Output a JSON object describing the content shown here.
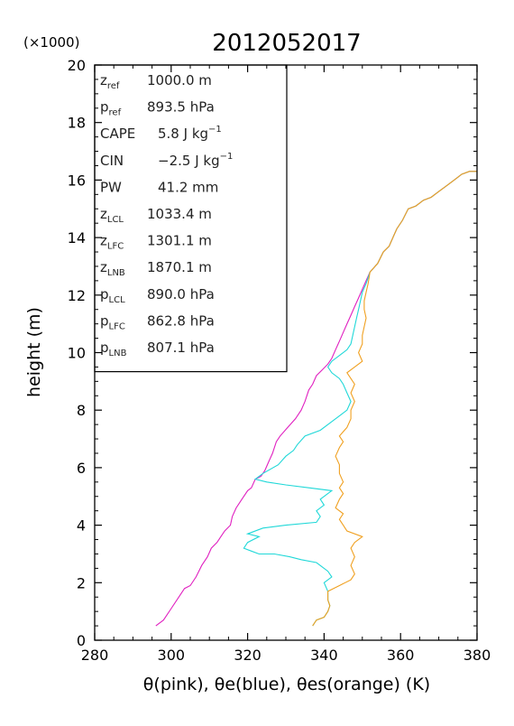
{
  "chart_data": {
    "type": "line",
    "title": "2012052017",
    "xlabel": "θ(pink), θe(blue), θes(orange)   (K)",
    "ylabel": "height (m)",
    "y_scale_note": "(×1000)",
    "xlim": [
      280,
      380
    ],
    "ylim": [
      0,
      20
    ],
    "x_ticks": [
      "280",
      "300",
      "320",
      "340",
      "360",
      "380"
    ],
    "y_ticks": [
      "0",
      "2",
      "4",
      "6",
      "8",
      "10",
      "12",
      "14",
      "16",
      "18",
      "20"
    ],
    "grid": false,
    "colors": {
      "theta": "#e020c0",
      "theta_e": "#20d8d8",
      "theta_es": "#f0a020",
      "upper_mix": "#7a9a40"
    },
    "stats": [
      {
        "base": "z",
        "sub": "ref",
        "value": "1000.0 m"
      },
      {
        "base": "p",
        "sub": "ref",
        "value": "893.5 hPa"
      },
      {
        "base": "CAPE",
        "sub": "",
        "value": "5.8 J kg",
        "sup": "−1"
      },
      {
        "base": "CIN",
        "sub": "",
        "value": "−2.5 J kg",
        "sup": "−1"
      },
      {
        "base": "PW",
        "sub": "",
        "value": "41.2 mm"
      },
      {
        "base": "z",
        "sub": "LCL",
        "value": "1033.4 m"
      },
      {
        "base": "z",
        "sub": "LFC",
        "value": "1301.1 m"
      },
      {
        "base": "z",
        "sub": "LNB",
        "value": "1870.1 m"
      },
      {
        "base": "p",
        "sub": "LCL",
        "value": "890.0 hPa"
      },
      {
        "base": "p",
        "sub": "LFC",
        "value": "862.8 hPa"
      },
      {
        "base": "p",
        "sub": "LNB",
        "value": "807.1 hPa"
      }
    ],
    "series": [
      {
        "name": "θ(pink)",
        "color": "#e020c0",
        "points": [
          [
            296,
            0.5
          ],
          [
            298,
            0.7
          ],
          [
            300,
            1.1
          ],
          [
            302,
            1.5
          ],
          [
            303.5,
            1.8
          ],
          [
            305,
            1.9
          ],
          [
            306.5,
            2.2
          ],
          [
            308,
            2.6
          ],
          [
            309.5,
            2.9
          ],
          [
            310.5,
            3.2
          ],
          [
            312,
            3.4
          ],
          [
            313,
            3.6
          ],
          [
            314,
            3.8
          ],
          [
            315.5,
            4.0
          ],
          [
            316,
            4.3
          ],
          [
            317,
            4.6
          ],
          [
            318.5,
            4.9
          ],
          [
            320,
            5.2
          ],
          [
            321,
            5.3
          ],
          [
            322,
            5.6
          ],
          [
            323.5,
            5.7
          ],
          [
            324.5,
            5.9
          ],
          [
            325.5,
            6.2
          ],
          [
            326.5,
            6.5
          ],
          [
            327.5,
            6.9
          ],
          [
            328.5,
            7.1
          ],
          [
            330.5,
            7.4
          ],
          [
            332.5,
            7.7
          ],
          [
            334,
            8.0
          ],
          [
            335,
            8.3
          ],
          [
            336,
            8.7
          ],
          [
            337,
            8.9
          ],
          [
            338,
            9.2
          ],
          [
            339.5,
            9.4
          ],
          [
            341,
            9.6
          ],
          [
            342,
            9.8
          ],
          [
            343,
            10.1
          ],
          [
            344,
            10.4
          ],
          [
            345,
            10.7
          ],
          [
            346,
            11.0
          ],
          [
            347,
            11.3
          ],
          [
            348,
            11.6
          ],
          [
            349,
            11.9
          ],
          [
            350,
            12.2
          ],
          [
            351,
            12.5
          ],
          [
            352,
            12.8
          ],
          [
            354,
            13.1
          ],
          [
            355.5,
            13.5
          ],
          [
            357,
            13.7
          ],
          [
            358,
            14.0
          ],
          [
            359,
            14.3
          ],
          [
            360.5,
            14.6
          ],
          [
            362,
            15.0
          ],
          [
            364,
            15.1
          ],
          [
            366,
            15.3
          ],
          [
            368,
            15.4
          ],
          [
            370,
            15.6
          ],
          [
            372,
            15.8
          ],
          [
            374,
            16.0
          ],
          [
            376,
            16.2
          ],
          [
            378,
            16.3
          ],
          [
            380,
            16.3
          ]
        ]
      },
      {
        "name": "θe(blue)",
        "color": "#20d8d8",
        "points": [
          [
            337,
            0.5
          ],
          [
            338,
            0.7
          ],
          [
            340,
            0.8
          ],
          [
            341,
            1.0
          ],
          [
            341.5,
            1.2
          ],
          [
            341,
            1.4
          ],
          [
            341,
            1.7
          ],
          [
            340,
            2.0
          ],
          [
            342,
            2.2
          ],
          [
            341,
            2.4
          ],
          [
            338,
            2.7
          ],
          [
            334,
            2.8
          ],
          [
            331,
            2.9
          ],
          [
            327,
            3.0
          ],
          [
            323,
            3.0
          ],
          [
            321,
            3.1
          ],
          [
            319,
            3.2
          ],
          [
            320,
            3.4
          ],
          [
            323,
            3.6
          ],
          [
            320,
            3.7
          ],
          [
            324,
            3.9
          ],
          [
            330,
            4.0
          ],
          [
            338,
            4.1
          ],
          [
            339,
            4.3
          ],
          [
            338,
            4.5
          ],
          [
            340,
            4.7
          ],
          [
            339,
            4.9
          ],
          [
            341,
            5.1
          ],
          [
            342,
            5.2
          ],
          [
            336,
            5.3
          ],
          [
            330,
            5.4
          ],
          [
            325,
            5.5
          ],
          [
            322,
            5.6
          ],
          [
            324,
            5.8
          ],
          [
            328,
            6.1
          ],
          [
            330,
            6.4
          ],
          [
            332,
            6.6
          ],
          [
            333,
            6.8
          ],
          [
            335,
            7.1
          ],
          [
            339,
            7.3
          ],
          [
            342,
            7.6
          ],
          [
            344,
            7.8
          ],
          [
            346,
            8.0
          ],
          [
            347,
            8.3
          ],
          [
            346,
            8.6
          ],
          [
            345,
            8.9
          ],
          [
            344,
            9.1
          ],
          [
            342,
            9.3
          ],
          [
            341,
            9.5
          ],
          [
            342,
            9.7
          ],
          [
            344,
            9.9
          ],
          [
            346,
            10.1
          ],
          [
            347,
            10.3
          ],
          [
            347.5,
            10.6
          ],
          [
            348,
            10.9
          ],
          [
            348.5,
            11.2
          ],
          [
            349,
            11.5
          ],
          [
            349.5,
            11.8
          ],
          [
            350,
            12.1
          ],
          [
            351,
            12.4
          ],
          [
            352,
            12.8
          ],
          [
            354,
            13.1
          ],
          [
            355.5,
            13.5
          ],
          [
            357,
            13.7
          ],
          [
            358,
            14.0
          ],
          [
            359,
            14.3
          ],
          [
            360.5,
            14.6
          ],
          [
            362,
            15.0
          ],
          [
            364,
            15.1
          ],
          [
            366,
            15.3
          ],
          [
            368,
            15.4
          ],
          [
            370,
            15.6
          ],
          [
            372,
            15.8
          ],
          [
            374,
            16.0
          ],
          [
            376,
            16.2
          ],
          [
            378,
            16.3
          ],
          [
            380,
            16.3
          ]
        ]
      },
      {
        "name": "θes(orange)",
        "color": "#f0a020",
        "points": [
          [
            337,
            0.5
          ],
          [
            338,
            0.7
          ],
          [
            340,
            0.8
          ],
          [
            341,
            1.0
          ],
          [
            341.5,
            1.2
          ],
          [
            341,
            1.4
          ],
          [
            341,
            1.7
          ],
          [
            344,
            1.9
          ],
          [
            347,
            2.1
          ],
          [
            348,
            2.3
          ],
          [
            347,
            2.6
          ],
          [
            348,
            2.9
          ],
          [
            347,
            3.2
          ],
          [
            348,
            3.4
          ],
          [
            350,
            3.6
          ],
          [
            346,
            3.8
          ],
          [
            345,
            4.0
          ],
          [
            344,
            4.2
          ],
          [
            345,
            4.4
          ],
          [
            343,
            4.6
          ],
          [
            344,
            4.9
          ],
          [
            345,
            5.1
          ],
          [
            344,
            5.3
          ],
          [
            345,
            5.5
          ],
          [
            344,
            5.8
          ],
          [
            344,
            6.1
          ],
          [
            343,
            6.4
          ],
          [
            344,
            6.7
          ],
          [
            345,
            6.9
          ],
          [
            344,
            7.1
          ],
          [
            346,
            7.4
          ],
          [
            347,
            7.7
          ],
          [
            347,
            8.0
          ],
          [
            348,
            8.3
          ],
          [
            347,
            8.6
          ],
          [
            348,
            8.9
          ],
          [
            347,
            9.1
          ],
          [
            346,
            9.3
          ],
          [
            348,
            9.5
          ],
          [
            350,
            9.7
          ],
          [
            349,
            10.0
          ],
          [
            350,
            10.3
          ],
          [
            350,
            10.6
          ],
          [
            350.5,
            10.9
          ],
          [
            351,
            11.2
          ],
          [
            350.5,
            11.5
          ],
          [
            350.5,
            11.8
          ],
          [
            351,
            12.1
          ],
          [
            351.5,
            12.4
          ],
          [
            352,
            12.8
          ],
          [
            354,
            13.1
          ],
          [
            355.5,
            13.5
          ],
          [
            357,
            13.7
          ],
          [
            358,
            14.0
          ],
          [
            359,
            14.3
          ],
          [
            360.5,
            14.6
          ],
          [
            362,
            15.0
          ],
          [
            364,
            15.1
          ],
          [
            366,
            15.3
          ],
          [
            368,
            15.4
          ],
          [
            370,
            15.6
          ],
          [
            372,
            15.8
          ],
          [
            374,
            16.0
          ],
          [
            376,
            16.2
          ],
          [
            378,
            16.3
          ],
          [
            380,
            16.3
          ]
        ]
      }
    ]
  }
}
